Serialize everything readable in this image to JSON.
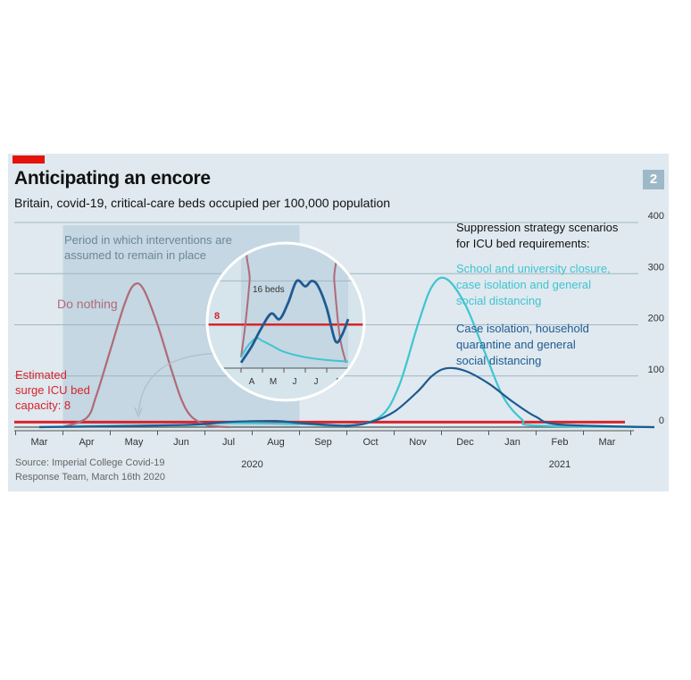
{
  "header": {
    "title": "Anticipating an encore",
    "subtitle": "Britain, covid-19, critical-care beds occupied per 100,000 population",
    "figure_number": "2"
  },
  "colors": {
    "background": "#dfe9ef",
    "shade": "#c4d7e2",
    "do_nothing": "#b06a78",
    "school_closure": "#3fc4d0",
    "household": "#1f5a91",
    "capacity": "#d8242c",
    "accent_red": "#e3120b"
  },
  "chart_data": {
    "type": "line",
    "title": "Anticipating an encore",
    "subtitle": "Britain, covid-19, critical-care beds occupied per 100,000 population",
    "x_months": [
      "Mar",
      "Apr",
      "May",
      "Jun",
      "Jul",
      "Aug",
      "Sep",
      "Oct",
      "Nov",
      "Dec",
      "Jan",
      "Feb",
      "Mar"
    ],
    "year_labels": [
      {
        "label": "2020",
        "month_index": 4.5
      },
      {
        "label": "2021",
        "month_index": 11.0
      }
    ],
    "ylim": [
      0,
      400
    ],
    "y_ticks": [
      0,
      100,
      200,
      300,
      400
    ],
    "grid": true,
    "legend_heading": "Suppression strategy scenarios\nfor ICU bed requirements:",
    "shaded_period": {
      "start": 0.5,
      "end": 5.5,
      "label": "Period in which interventions are\nassumed to remain in place"
    },
    "capacity": {
      "value": 8,
      "label": "Estimated\nsurge ICU bed\ncapacity: 8"
    },
    "series": [
      {
        "name": "Do nothing",
        "x": [
          0.5,
          1.0,
          1.2,
          1.5,
          1.8,
          2.0,
          2.2,
          2.5,
          2.8,
          3.0,
          3.2,
          3.5,
          3.8,
          4.0
        ],
        "values": [
          0,
          18,
          60,
          150,
          240,
          278,
          270,
          200,
          110,
          55,
          22,
          5,
          1,
          0
        ]
      },
      {
        "name": "School and university closure,\ncase isolation and general\nsocial distancing",
        "x": [
          0,
          3.0,
          4.0,
          5.5,
          6.5,
          7.2,
          7.6,
          8.0,
          8.3,
          8.6,
          9.0,
          9.4,
          9.8,
          10.2,
          10.5,
          13.0
        ],
        "values": [
          0,
          4,
          8,
          6,
          3,
          20,
          80,
          200,
          275,
          290,
          240,
          150,
          60,
          15,
          3,
          0
        ]
      },
      {
        "name": "Case isolation, household\nquarantine and general\nsocial distancing",
        "x": [
          0,
          3.0,
          4.0,
          5.0,
          5.5,
          6.5,
          7.0,
          7.5,
          8.0,
          8.3,
          8.6,
          9.0,
          9.5,
          10.0,
          10.5,
          11.0,
          13.0
        ],
        "values": [
          0,
          4,
          10,
          12,
          8,
          3,
          10,
          30,
          70,
          100,
          115,
          110,
          85,
          50,
          20,
          5,
          0
        ]
      }
    ],
    "inset": {
      "x_months": [
        "A",
        "M",
        "J",
        "J",
        "A"
      ],
      "capacity_label": "8",
      "annotation": "16 beds",
      "ylim": [
        0,
        20
      ],
      "series": [
        {
          "name": "Do nothing",
          "x": [
            0.0,
            0.2,
            0.4,
            0.55,
            4.2,
            4.35,
            4.6,
            4.9
          ],
          "values": [
            2,
            8,
            16,
            24,
            24,
            16,
            6,
            1
          ]
        },
        {
          "name": "School and university closure",
          "x": [
            0.0,
            0.3,
            0.7,
            1.0,
            1.5,
            2.0,
            3.0,
            4.0,
            5.0
          ],
          "values": [
            2,
            4,
            5.5,
            5,
            4,
            3,
            2,
            1.5,
            1.2
          ]
        },
        {
          "name": "Case isolation, household quarantine",
          "x": [
            0.0,
            0.5,
            0.9,
            1.4,
            1.8,
            2.2,
            2.6,
            3.0,
            3.3,
            3.6,
            4.0,
            4.4,
            4.7,
            5.0
          ],
          "values": [
            1,
            4,
            7,
            10,
            9,
            12,
            16,
            15,
            16,
            15,
            11,
            5,
            6,
            9
          ]
        }
      ]
    },
    "source": "Source: Imperial College Covid-19\nResponse Team, March 16th 2020"
  }
}
